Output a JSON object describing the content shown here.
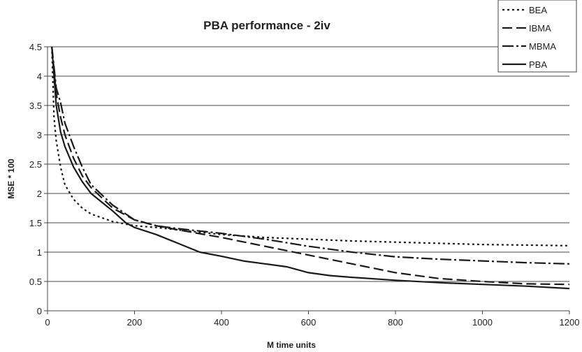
{
  "chart_data": {
    "type": "line",
    "title": "PBA performance - 2iv",
    "xlabel": "M time units",
    "ylabel": "MSE * 100",
    "xlim": [
      0,
      1200
    ],
    "ylim": [
      0,
      4.5
    ],
    "x_ticks": [
      0,
      200,
      400,
      600,
      800,
      1000,
      1200
    ],
    "y_ticks": [
      0,
      0.5,
      1,
      1.5,
      2,
      2.5,
      3,
      3.5,
      4,
      4.5
    ],
    "grid": "horizontal",
    "legend_position": "top-right",
    "series": [
      {
        "name": "BEA",
        "style": "dotted",
        "x": [
          10,
          15,
          20,
          30,
          40,
          60,
          80,
          100,
          150,
          200,
          250,
          300,
          400,
          500,
          600,
          700,
          800,
          900,
          1000,
          1100,
          1200
        ],
        "y": [
          4.5,
          3.3,
          2.9,
          2.45,
          2.15,
          1.9,
          1.75,
          1.65,
          1.52,
          1.45,
          1.42,
          1.38,
          1.3,
          1.25,
          1.22,
          1.19,
          1.17,
          1.15,
          1.13,
          1.12,
          1.11
        ]
      },
      {
        "name": "IBMA",
        "style": "dash",
        "x": [
          10,
          20,
          30,
          40,
          60,
          80,
          100,
          150,
          200,
          250,
          300,
          400,
          500,
          600,
          700,
          800,
          900,
          1000,
          1100,
          1200
        ],
        "y": [
          4.5,
          3.7,
          3.3,
          3.0,
          2.6,
          2.3,
          2.1,
          1.75,
          1.55,
          1.45,
          1.38,
          1.25,
          1.1,
          0.95,
          0.8,
          0.65,
          0.55,
          0.5,
          0.46,
          0.45
        ]
      },
      {
        "name": "MBMA",
        "style": "dash-dot",
        "x": [
          10,
          20,
          30,
          40,
          60,
          80,
          100,
          150,
          200,
          250,
          300,
          400,
          500,
          600,
          700,
          800,
          900,
          1000,
          1100,
          1200
        ],
        "y": [
          4.5,
          3.8,
          3.55,
          3.2,
          2.8,
          2.45,
          2.15,
          1.8,
          1.55,
          1.45,
          1.4,
          1.32,
          1.22,
          1.1,
          1.0,
          0.92,
          0.88,
          0.85,
          0.82,
          0.8
        ]
      },
      {
        "name": "PBA",
        "style": "solid",
        "x": [
          10,
          20,
          30,
          40,
          60,
          80,
          100,
          150,
          180,
          200,
          250,
          300,
          350,
          400,
          450,
          500,
          550,
          600,
          650,
          700,
          800,
          900,
          1000,
          1100,
          1200
        ],
        "y": [
          4.5,
          3.5,
          3.05,
          2.8,
          2.45,
          2.2,
          2.0,
          1.7,
          1.5,
          1.42,
          1.3,
          1.15,
          1.0,
          0.93,
          0.85,
          0.8,
          0.75,
          0.65,
          0.6,
          0.57,
          0.52,
          0.48,
          0.45,
          0.42,
          0.38
        ]
      }
    ]
  }
}
